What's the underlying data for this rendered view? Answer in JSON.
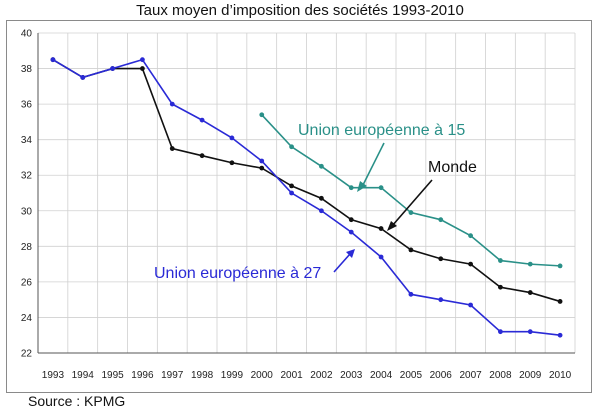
{
  "title": "Taux moyen d’imposition des sociétés 1993-2010",
  "source": "Source : KPMG",
  "chart_data": {
    "type": "line",
    "x": [
      "1993",
      "1994",
      "1995",
      "1996",
      "1997",
      "1998",
      "1999",
      "2000",
      "2001",
      "2002",
      "2003",
      "2004",
      "2005",
      "2006",
      "2007",
      "2008",
      "2009",
      "2010"
    ],
    "ylim": [
      22,
      40
    ],
    "yticks": [
      22,
      24,
      26,
      28,
      30,
      32,
      34,
      36,
      38,
      40
    ],
    "grid": true,
    "series": [
      {
        "name": "Union européenne à 15",
        "color": "#2a9088",
        "values": [
          null,
          null,
          null,
          null,
          null,
          null,
          null,
          35.4,
          33.6,
          32.5,
          31.3,
          31.3,
          29.9,
          29.5,
          28.6,
          27.2,
          27.0,
          26.9
        ]
      },
      {
        "name": "Monde",
        "color": "#111111",
        "values": [
          38.5,
          37.5,
          38.0,
          38.0,
          33.5,
          33.1,
          32.7,
          32.4,
          31.4,
          30.7,
          29.5,
          29.0,
          27.8,
          27.3,
          27.0,
          25.7,
          25.4,
          24.9
        ]
      },
      {
        "name": "Union européenne à 27",
        "color": "#2a2ad6",
        "values": [
          38.5,
          37.5,
          38.0,
          38.5,
          36.0,
          35.1,
          34.1,
          32.8,
          31.0,
          30.0,
          28.8,
          27.4,
          25.3,
          25.0,
          24.7,
          23.2,
          23.2,
          23.0
        ]
      }
    ]
  }
}
